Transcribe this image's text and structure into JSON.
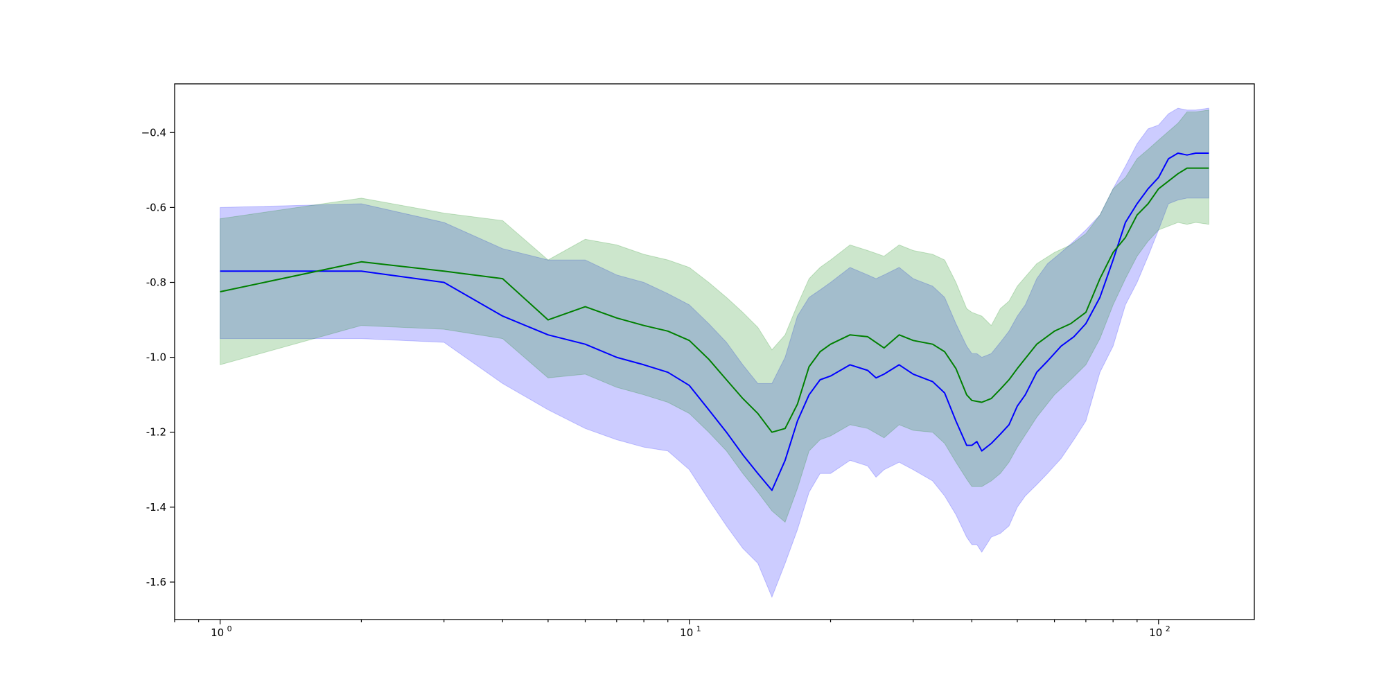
{
  "chart_data": {
    "type": "line",
    "title": "",
    "xlabel": "",
    "ylabel": "",
    "x_scale": "log",
    "xlim": [
      0.8,
      160
    ],
    "ylim": [
      -1.7,
      -0.27
    ],
    "grid": false,
    "legend": "none",
    "x_ticks": [
      {
        "value": 1,
        "base": "10",
        "exp": "0"
      },
      {
        "value": 10,
        "base": "10",
        "exp": "1"
      },
      {
        "value": 100,
        "base": "10",
        "exp": "2"
      }
    ],
    "y_ticks": [
      {
        "value": -0.4,
        "label": "−0.4"
      },
      {
        "value": -0.6,
        "label": "-0.6"
      },
      {
        "value": -0.8,
        "label": "-0.8"
      },
      {
        "value": -1.0,
        "label": "-1.0"
      },
      {
        "value": -1.2,
        "label": "-1.2"
      },
      {
        "value": -1.4,
        "label": "-1.4"
      },
      {
        "value": -1.6,
        "label": "-1.6"
      }
    ],
    "series": [
      {
        "color": "#0000ff",
        "band_color": "#0000ff",
        "band_opacity": 0.2,
        "points": [
          [
            1,
            -0.77,
            -0.95,
            -0.6
          ],
          [
            2,
            -0.77,
            -0.95,
            -0.59
          ],
          [
            3,
            -0.8,
            -0.96,
            -0.64
          ],
          [
            4,
            -0.89,
            -1.07,
            -0.71
          ],
          [
            5,
            -0.94,
            -1.14,
            -0.74
          ],
          [
            6,
            -0.965,
            -1.19,
            -0.74
          ],
          [
            7,
            -1.0,
            -1.22,
            -0.78
          ],
          [
            8,
            -1.02,
            -1.24,
            -0.8
          ],
          [
            9,
            -1.04,
            -1.25,
            -0.83
          ],
          [
            10,
            -1.075,
            -1.3,
            -0.86
          ],
          [
            11,
            -1.14,
            -1.38,
            -0.91
          ],
          [
            12,
            -1.2,
            -1.45,
            -0.96
          ],
          [
            13,
            -1.26,
            -1.51,
            -1.02
          ],
          [
            14,
            -1.31,
            -1.55,
            -1.07
          ],
          [
            15,
            -1.355,
            -1.64,
            -1.07
          ],
          [
            16,
            -1.275,
            -1.55,
            -1.0
          ],
          [
            17,
            -1.17,
            -1.46,
            -0.89
          ],
          [
            18,
            -1.1,
            -1.36,
            -0.84
          ],
          [
            19,
            -1.06,
            -1.31,
            -0.82
          ],
          [
            20,
            -1.05,
            -1.31,
            -0.8
          ],
          [
            22,
            -1.02,
            -1.275,
            -0.76
          ],
          [
            24,
            -1.035,
            -1.29,
            -0.78
          ],
          [
            25,
            -1.055,
            -1.32,
            -0.79
          ],
          [
            26,
            -1.045,
            -1.3,
            -0.78
          ],
          [
            28,
            -1.02,
            -1.28,
            -0.76
          ],
          [
            30,
            -1.045,
            -1.3,
            -0.79
          ],
          [
            33,
            -1.065,
            -1.33,
            -0.81
          ],
          [
            35,
            -1.095,
            -1.37,
            -0.84
          ],
          [
            37,
            -1.17,
            -1.42,
            -0.91
          ],
          [
            39,
            -1.235,
            -1.48,
            -0.97
          ],
          [
            40,
            -1.235,
            -1.5,
            -0.99
          ],
          [
            41,
            -1.225,
            -1.5,
            -0.99
          ],
          [
            42,
            -1.25,
            -1.52,
            -1.0
          ],
          [
            44,
            -1.23,
            -1.48,
            -0.99
          ],
          [
            46,
            -1.205,
            -1.47,
            -0.96
          ],
          [
            48,
            -1.18,
            -1.45,
            -0.93
          ],
          [
            50,
            -1.13,
            -1.4,
            -0.89
          ],
          [
            52,
            -1.1,
            -1.37,
            -0.86
          ],
          [
            55,
            -1.04,
            -1.34,
            -0.79
          ],
          [
            58,
            -1.01,
            -1.31,
            -0.75
          ],
          [
            62,
            -0.97,
            -1.27,
            -0.72
          ],
          [
            66,
            -0.945,
            -1.22,
            -0.69
          ],
          [
            70,
            -0.91,
            -1.17,
            -0.66
          ],
          [
            75,
            -0.84,
            -1.04,
            -0.62
          ],
          [
            80,
            -0.74,
            -0.97,
            -0.55
          ],
          [
            85,
            -0.64,
            -0.86,
            -0.49
          ],
          [
            90,
            -0.59,
            -0.8,
            -0.43
          ],
          [
            95,
            -0.55,
            -0.73,
            -0.39
          ],
          [
            100,
            -0.52,
            -0.66,
            -0.38
          ],
          [
            105,
            -0.47,
            -0.59,
            -0.35
          ],
          [
            110,
            -0.455,
            -0.58,
            -0.335
          ],
          [
            115,
            -0.46,
            -0.575,
            -0.34
          ],
          [
            120,
            -0.455,
            -0.575,
            -0.34
          ],
          [
            128,
            -0.455,
            -0.575,
            -0.335
          ]
        ]
      },
      {
        "color": "#008000",
        "band_color": "#008000",
        "band_opacity": 0.2,
        "points": [
          [
            1,
            -0.825,
            -1.02,
            -0.63
          ],
          [
            2,
            -0.745,
            -0.915,
            -0.575
          ],
          [
            3,
            -0.77,
            -0.925,
            -0.615
          ],
          [
            4,
            -0.79,
            -0.95,
            -0.635
          ],
          [
            5,
            -0.9,
            -1.055,
            -0.74
          ],
          [
            6,
            -0.865,
            -1.045,
            -0.685
          ],
          [
            7,
            -0.895,
            -1.08,
            -0.7
          ],
          [
            8,
            -0.915,
            -1.1,
            -0.725
          ],
          [
            9,
            -0.93,
            -1.12,
            -0.74
          ],
          [
            10,
            -0.955,
            -1.15,
            -0.76
          ],
          [
            11,
            -1.005,
            -1.2,
            -0.8
          ],
          [
            12,
            -1.06,
            -1.25,
            -0.84
          ],
          [
            13,
            -1.11,
            -1.31,
            -0.88
          ],
          [
            14,
            -1.15,
            -1.36,
            -0.92
          ],
          [
            15,
            -1.2,
            -1.41,
            -0.98
          ],
          [
            16,
            -1.19,
            -1.44,
            -0.94
          ],
          [
            17,
            -1.125,
            -1.35,
            -0.86
          ],
          [
            18,
            -1.025,
            -1.25,
            -0.79
          ],
          [
            19,
            -0.985,
            -1.22,
            -0.76
          ],
          [
            20,
            -0.965,
            -1.21,
            -0.74
          ],
          [
            22,
            -0.94,
            -1.18,
            -0.7
          ],
          [
            24,
            -0.945,
            -1.19,
            -0.715
          ],
          [
            26,
            -0.975,
            -1.215,
            -0.73
          ],
          [
            28,
            -0.94,
            -1.18,
            -0.7
          ],
          [
            30,
            -0.955,
            -1.195,
            -0.715
          ],
          [
            33,
            -0.965,
            -1.2,
            -0.725
          ],
          [
            35,
            -0.985,
            -1.23,
            -0.74
          ],
          [
            37,
            -1.03,
            -1.28,
            -0.8
          ],
          [
            39,
            -1.1,
            -1.325,
            -0.87
          ],
          [
            40,
            -1.115,
            -1.345,
            -0.88
          ],
          [
            42,
            -1.12,
            -1.345,
            -0.89
          ],
          [
            44,
            -1.11,
            -1.33,
            -0.915
          ],
          [
            46,
            -1.085,
            -1.31,
            -0.87
          ],
          [
            48,
            -1.06,
            -1.28,
            -0.85
          ],
          [
            50,
            -1.03,
            -1.24,
            -0.81
          ],
          [
            55,
            -0.965,
            -1.16,
            -0.75
          ],
          [
            60,
            -0.93,
            -1.1,
            -0.72
          ],
          [
            65,
            -0.91,
            -1.06,
            -0.7
          ],
          [
            70,
            -0.88,
            -1.02,
            -0.67
          ],
          [
            75,
            -0.79,
            -0.95,
            -0.62
          ],
          [
            80,
            -0.72,
            -0.86,
            -0.55
          ],
          [
            85,
            -0.68,
            -0.79,
            -0.52
          ],
          [
            90,
            -0.62,
            -0.73,
            -0.47
          ],
          [
            95,
            -0.59,
            -0.69,
            -0.445
          ],
          [
            100,
            -0.55,
            -0.66,
            -0.42
          ],
          [
            110,
            -0.51,
            -0.64,
            -0.375
          ],
          [
            115,
            -0.495,
            -0.645,
            -0.345
          ],
          [
            120,
            -0.495,
            -0.64,
            -0.345
          ],
          [
            128,
            -0.495,
            -0.645,
            -0.34
          ]
        ]
      }
    ]
  }
}
